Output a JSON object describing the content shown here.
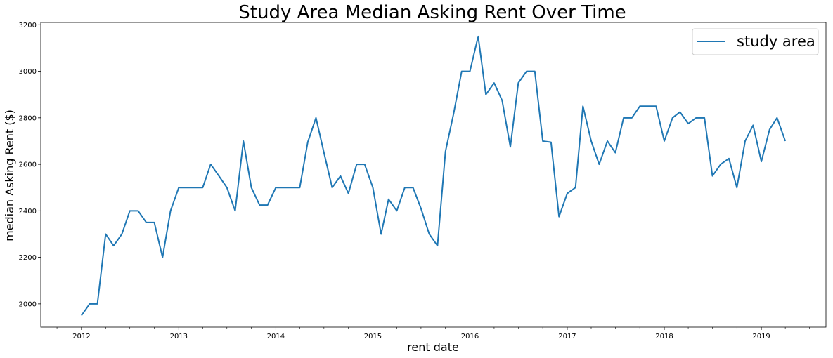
{
  "chart_data": {
    "type": "line",
    "title": "Study Area Median Asking Rent Over Time",
    "xlabel": "rent date",
    "ylabel": "median Asking Rent ($)",
    "xlim": [
      "2011-08-01",
      "2019-09-01"
    ],
    "ylim": [
      1900,
      3210
    ],
    "x_ticks": [
      "2012",
      "2013",
      "2014",
      "2015",
      "2016",
      "2017",
      "2018",
      "2019"
    ],
    "y_ticks": [
      2000,
      2200,
      2400,
      2600,
      2800,
      3000,
      3200
    ],
    "grid": false,
    "legend_position": "top-right",
    "colors": {
      "series": "#1f77b4",
      "axis": "#000000",
      "background": "#ffffff"
    },
    "series": [
      {
        "name": "study area",
        "x": [
          "2012-01",
          "2012-02",
          "2012-03",
          "2012-04",
          "2012-05",
          "2012-06",
          "2012-07",
          "2012-08",
          "2012-09",
          "2012-10",
          "2012-11",
          "2012-12",
          "2013-01",
          "2013-02",
          "2013-03",
          "2013-04",
          "2013-05",
          "2013-06",
          "2013-07",
          "2013-08",
          "2013-09",
          "2013-10",
          "2013-11",
          "2013-12",
          "2014-01",
          "2014-02",
          "2014-03",
          "2014-04",
          "2014-05",
          "2014-06",
          "2014-07",
          "2014-08",
          "2014-09",
          "2014-10",
          "2014-11",
          "2014-12",
          "2015-01",
          "2015-02",
          "2015-03",
          "2015-04",
          "2015-05",
          "2015-06",
          "2015-07",
          "2015-08",
          "2015-09",
          "2015-10",
          "2015-11",
          "2015-12",
          "2016-01",
          "2016-02",
          "2016-03",
          "2016-04",
          "2016-05",
          "2016-06",
          "2016-07",
          "2016-08",
          "2016-09",
          "2016-10",
          "2016-11",
          "2016-12",
          "2017-01",
          "2017-02",
          "2017-03",
          "2017-04",
          "2017-05",
          "2017-06",
          "2017-07",
          "2017-08",
          "2017-09",
          "2017-10",
          "2017-11",
          "2017-12",
          "2018-01",
          "2018-02",
          "2018-03",
          "2018-04",
          "2018-05",
          "2018-06",
          "2018-07",
          "2018-08",
          "2018-09",
          "2018-10",
          "2018-11",
          "2018-12",
          "2019-01",
          "2019-02",
          "2019-03",
          "2019-04"
        ],
        "values": [
          1950,
          2000,
          2000,
          2300,
          2250,
          2300,
          2400,
          2400,
          2350,
          2350,
          2200,
          2400,
          2500,
          2500,
          2500,
          2500,
          2600,
          2550,
          2500,
          2400,
          2700,
          2500,
          2425,
          2425,
          2500,
          2500,
          2500,
          2500,
          2695,
          2800,
          2650,
          2500,
          2550,
          2475,
          2600,
          2600,
          2500,
          2300,
          2450,
          2400,
          2500,
          2500,
          2410,
          2300,
          2250,
          2655,
          2820,
          3000,
          3000,
          3150,
          2900,
          2950,
          2875,
          2675,
          2950,
          3000,
          3000,
          2700,
          2695,
          2375,
          2475,
          2500,
          2850,
          2700,
          2600,
          2700,
          2650,
          2800,
          2800,
          2850,
          2850,
          2850,
          2700,
          2800,
          2825,
          2775,
          2800,
          2800,
          2550,
          2600,
          2625,
          2500,
          2700,
          2768,
          2612,
          2750,
          2800,
          2700
        ]
      }
    ]
  }
}
